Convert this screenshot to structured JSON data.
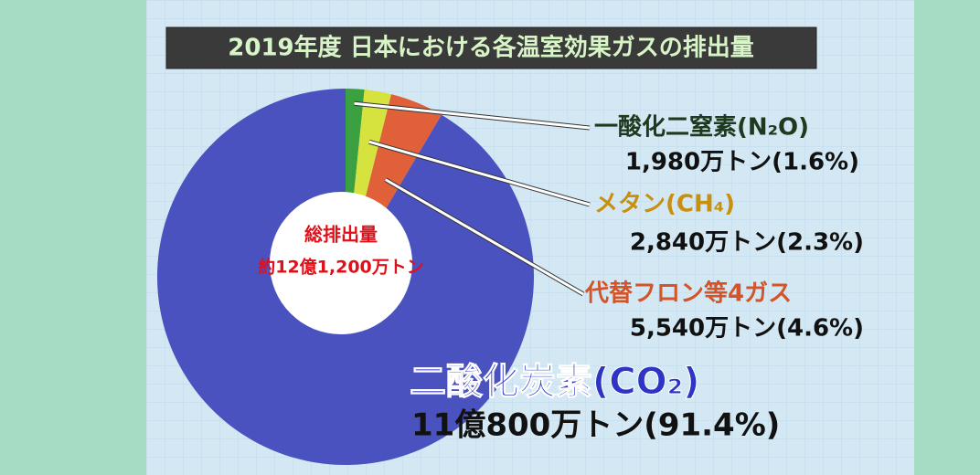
{
  "chart_data": {
    "type": "pie",
    "title": "2019年度 日本における各温室効果ガスの排出量",
    "center_label": [
      "総排出量",
      "約12億1,200万トン"
    ],
    "categories": [
      "一酸化二窒素(N₂O)",
      "メタン(CH₄)",
      "代替フロン等4ガス",
      "二酸化炭素(CO₂)"
    ],
    "values": [
      1.6,
      2.3,
      4.6,
      91.4
    ],
    "value_labels": [
      "1,980万トン(1.6%)",
      "2,840万トン(2.3%)",
      "5,540万トン(4.6%)",
      "11億800万トン(91.4%)"
    ],
    "colors": [
      "#3aa040",
      "#d6e23e",
      "#e0603a",
      "#4a52c0"
    ]
  }
}
